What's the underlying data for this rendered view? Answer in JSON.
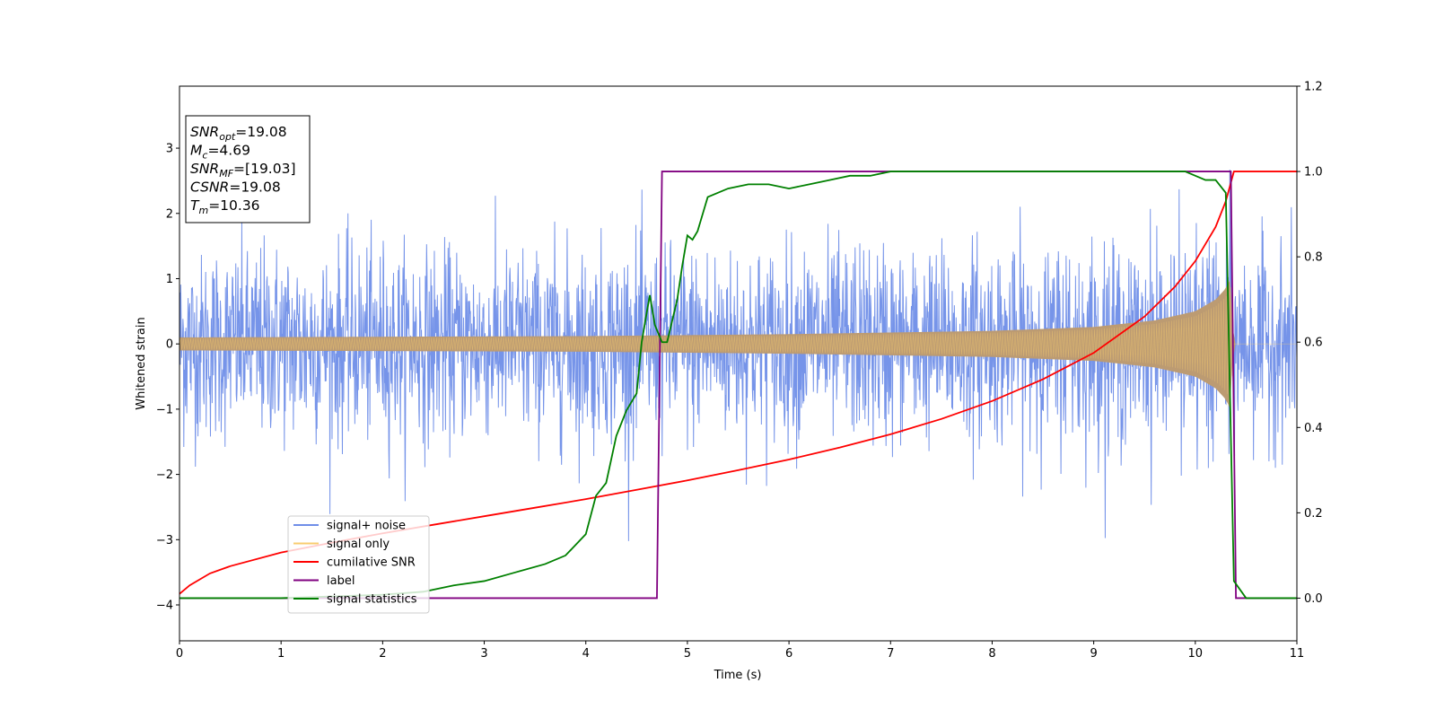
{
  "chart_data": {
    "type": "line",
    "xlabel": "Time (s)",
    "ylabel": "Whitened strain",
    "xlim": [
      0,
      11
    ],
    "ylim": [
      -4.55,
      3.95
    ],
    "y2lim": [
      -0.1,
      1.2
    ],
    "x_ticks": [
      0,
      1,
      2,
      3,
      4,
      5,
      6,
      7,
      8,
      9,
      10,
      11
    ],
    "y_ticks": [
      -4,
      -3,
      -2,
      -1,
      0,
      1,
      2,
      3
    ],
    "y2_ticks": [
      "0.0",
      "0.2",
      "0.4",
      "0.6",
      "0.8",
      "1.0",
      "1.2"
    ],
    "legend_position": "lower-left",
    "grid": false,
    "info_box": [
      {
        "sym": "SNR",
        "sub": "opt",
        "value": "=19.08"
      },
      {
        "sym": "M",
        "sub": "c",
        "value": "=4.69"
      },
      {
        "sym": "SNR",
        "sub": "MF",
        "value": "=[19.03]"
      },
      {
        "sym": "CSNR",
        "sub": "",
        "value": "=19.08"
      },
      {
        "sym": "T",
        "sub": "m",
        "value": "=10.36"
      }
    ],
    "series": [
      {
        "name": "signal+ noise",
        "axis": "left",
        "color": "#6f8ee8",
        "noise_sigma": 0.72,
        "visible_range": [
          -4.15,
          3.6
        ],
        "signal_amplitude": {
          "t": [
            0,
            2,
            4,
            6,
            8,
            9,
            9.6,
            10,
            10.2,
            10.3,
            10.36,
            10.37,
            11
          ],
          "amp": [
            0.1,
            0.11,
            0.12,
            0.15,
            0.2,
            0.26,
            0.36,
            0.5,
            0.68,
            0.85,
            1.05,
            0,
            0
          ]
        }
      },
      {
        "name": "signal only",
        "axis": "left",
        "color": "#f8cd6f",
        "fill_color": "#bc9b72",
        "envelope": {
          "t": [
            0,
            2,
            4,
            6,
            8,
            9,
            9.6,
            10,
            10.2,
            10.3,
            10.36,
            10.37,
            11
          ],
          "amp": [
            0.1,
            0.11,
            0.12,
            0.15,
            0.2,
            0.26,
            0.36,
            0.5,
            0.68,
            0.85,
            1.05,
            0,
            0
          ]
        }
      },
      {
        "name": "cumilative SNR",
        "axis": "right",
        "color": "#ff0000",
        "x": [
          0,
          0.1,
          0.3,
          0.5,
          1,
          1.5,
          2,
          2.5,
          3,
          3.5,
          4,
          4.5,
          5,
          5.5,
          6,
          6.5,
          7,
          7.5,
          8,
          8.5,
          9,
          9.5,
          9.8,
          10,
          10.2,
          10.3,
          10.38,
          10.5,
          11
        ],
        "y": [
          0.01,
          0.03,
          0.058,
          0.075,
          0.107,
          0.13,
          0.152,
          0.172,
          0.192,
          0.212,
          0.232,
          0.254,
          0.276,
          0.3,
          0.325,
          0.353,
          0.384,
          0.42,
          0.462,
          0.513,
          0.575,
          0.66,
          0.73,
          0.79,
          0.87,
          0.93,
          1.0,
          1.0,
          1.0
        ]
      },
      {
        "name": "label",
        "axis": "right",
        "color": "#800080",
        "x": [
          0,
          4.7,
          4.75,
          10.35,
          10.4,
          11
        ],
        "y": [
          0,
          0,
          1,
          1,
          0,
          0
        ]
      },
      {
        "name": "signal statistics",
        "axis": "right",
        "color": "#008000",
        "x": [
          0,
          1,
          2,
          2.4,
          2.7,
          3,
          3.3,
          3.6,
          3.8,
          4.0,
          4.1,
          4.2,
          4.3,
          4.4,
          4.5,
          4.55,
          4.6,
          4.63,
          4.68,
          4.75,
          4.8,
          4.9,
          4.95,
          5.0,
          5.05,
          5.1,
          5.15,
          5.2,
          5.3,
          5.4,
          5.6,
          5.8,
          6.0,
          6.2,
          6.4,
          6.6,
          6.8,
          7.0,
          7.5,
          8.0,
          8.5,
          9.0,
          9.5,
          9.9,
          10.0,
          10.1,
          10.2,
          10.3,
          10.38,
          10.5,
          11
        ],
        "y": [
          0,
          0,
          0.008,
          0.015,
          0.03,
          0.04,
          0.06,
          0.08,
          0.1,
          0.15,
          0.24,
          0.27,
          0.38,
          0.44,
          0.48,
          0.6,
          0.67,
          0.71,
          0.64,
          0.6,
          0.6,
          0.7,
          0.78,
          0.85,
          0.84,
          0.86,
          0.9,
          0.94,
          0.95,
          0.96,
          0.97,
          0.97,
          0.96,
          0.97,
          0.98,
          0.99,
          0.99,
          1.0,
          1.0,
          1.0,
          1.0,
          1.0,
          1.0,
          1.0,
          0.99,
          0.98,
          0.98,
          0.95,
          0.04,
          0.0,
          0.0
        ]
      }
    ]
  }
}
